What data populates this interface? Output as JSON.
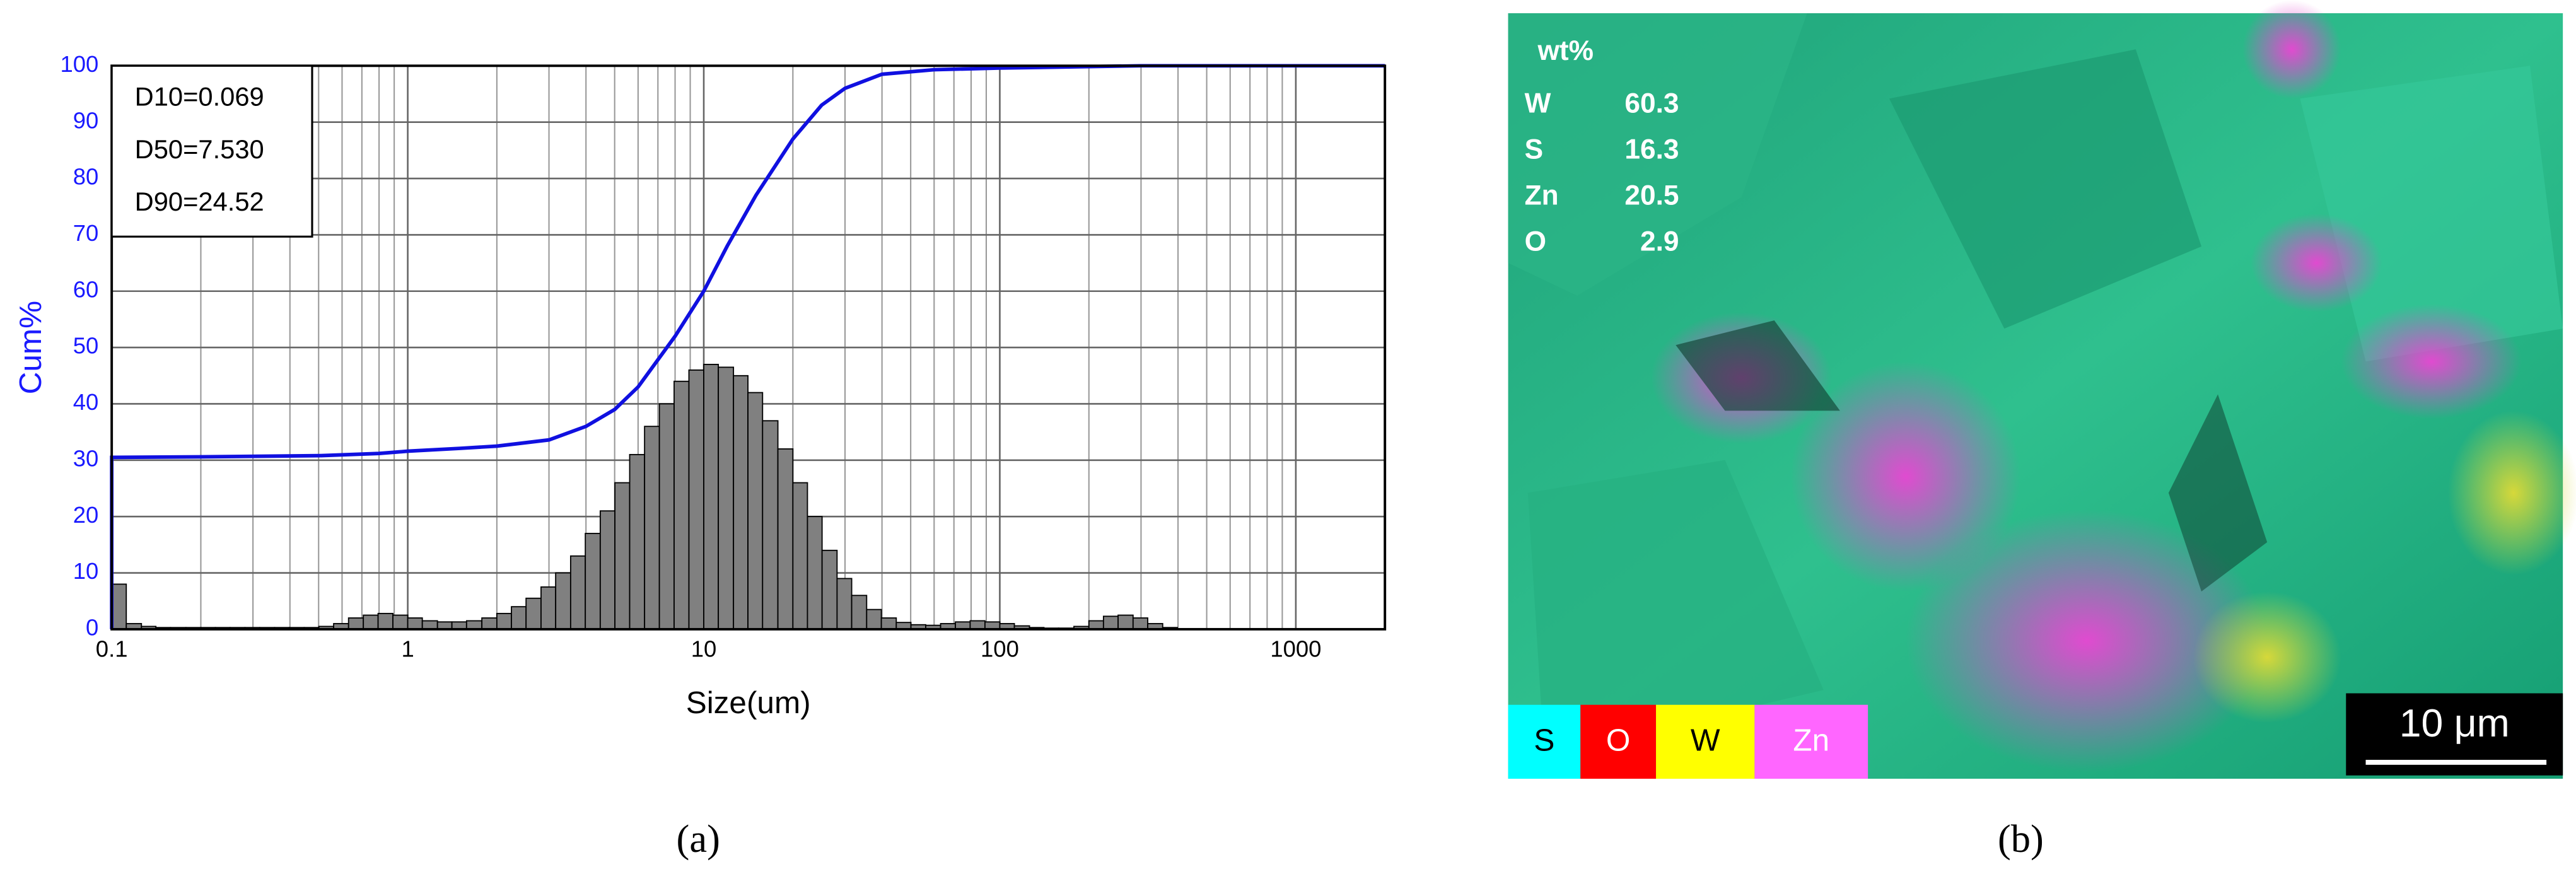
{
  "chart_data": {
    "type": "histogram",
    "xlabel": "Size(um)",
    "ylabel": "Cum%",
    "xscale": "log",
    "xlim": [
      0.1,
      2000
    ],
    "ylim": [
      0,
      100
    ],
    "xticks": [
      0.1,
      1,
      10,
      100,
      1000
    ],
    "x_minor_gridlines": [
      0.2,
      0.3,
      0.4,
      0.5,
      0.6,
      0.7,
      0.8,
      0.9,
      2,
      3,
      4,
      5,
      6,
      7,
      8,
      9,
      20,
      30,
      40,
      50,
      60,
      70,
      80,
      90,
      200,
      300,
      400,
      500,
      600,
      700,
      800,
      900
    ],
    "yticks": [
      0,
      10,
      20,
      30,
      40,
      50,
      60,
      70,
      80,
      90,
      100
    ],
    "grid": true,
    "bar_color": "#808080",
    "ytick_color": "#1a1aff",
    "ylabel_color": "#1a1aff",
    "annotations": [
      "D10=0.069",
      "D50=7.530",
      "D90=24.52"
    ],
    "bins": [
      0.1,
      0.112,
      0.126,
      0.141,
      0.158,
      0.178,
      0.2,
      0.224,
      0.251,
      0.282,
      0.316,
      0.355,
      0.398,
      0.447,
      0.501,
      0.562,
      0.631,
      0.708,
      0.794,
      0.891,
      1,
      1.12,
      1.26,
      1.41,
      1.58,
      1.78,
      2,
      2.24,
      2.51,
      2.82,
      3.16,
      3.55,
      3.98,
      4.47,
      5.01,
      5.62,
      6.31,
      7.08,
      7.94,
      8.91,
      10,
      11.2,
      12.6,
      14.1,
      15.8,
      17.8,
      20,
      22.4,
      25.1,
      28.2,
      31.6,
      35.5,
      39.8,
      44.7,
      50.1,
      56.2,
      63.1,
      70.8,
      79.4,
      89.1,
      100,
      112,
      126,
      141,
      158,
      178,
      200,
      224,
      251,
      282,
      316,
      355,
      398
    ],
    "counts": [
      8,
      1,
      0.5,
      0.3,
      0.3,
      0.3,
      0.3,
      0.3,
      0.3,
      0.3,
      0.3,
      0.3,
      0.3,
      0.3,
      0.5,
      1,
      2,
      2.5,
      2.8,
      2.5,
      2,
      1.5,
      1.3,
      1.3,
      1.5,
      2,
      2.8,
      4,
      5.5,
      7.5,
      10,
      13,
      17,
      21,
      26,
      31,
      36,
      40,
      44,
      46,
      47,
      46.5,
      45,
      42,
      37,
      32,
      26,
      20,
      14,
      9,
      6,
      3.5,
      2,
      1.2,
      0.8,
      0.7,
      1,
      1.3,
      1.5,
      1.3,
      1,
      0.6,
      0.3,
      0.2,
      0.2,
      0.5,
      1.5,
      2.3,
      2.5,
      2,
      1,
      0.3
    ],
    "cumulative": {
      "color": "#1010e0",
      "x": [
        0.1,
        0.1,
        0.2,
        0.5,
        0.8,
        1,
        1.5,
        2,
        3,
        4,
        5,
        6,
        8,
        10,
        12,
        15,
        20,
        25,
        30,
        40,
        60,
        100,
        300,
        2000
      ],
      "values": [
        0,
        30.5,
        30.6,
        30.8,
        31.2,
        31.6,
        32.1,
        32.5,
        33.6,
        36,
        39,
        43,
        52,
        60,
        68,
        77,
        87,
        93,
        96,
        98.5,
        99.3,
        99.6,
        100,
        100
      ]
    }
  },
  "image_panel": {
    "composition": {
      "header": "wt%",
      "rows": [
        [
          "W",
          "60.3"
        ],
        [
          "S",
          "16.3"
        ],
        [
          "Zn",
          "20.5"
        ],
        [
          "O",
          "2.9"
        ]
      ]
    },
    "legend": [
      "S",
      "O",
      "W",
      "Zn"
    ],
    "scale_bar": "10 μm"
  },
  "captions": [
    "(a)",
    "(b)"
  ]
}
